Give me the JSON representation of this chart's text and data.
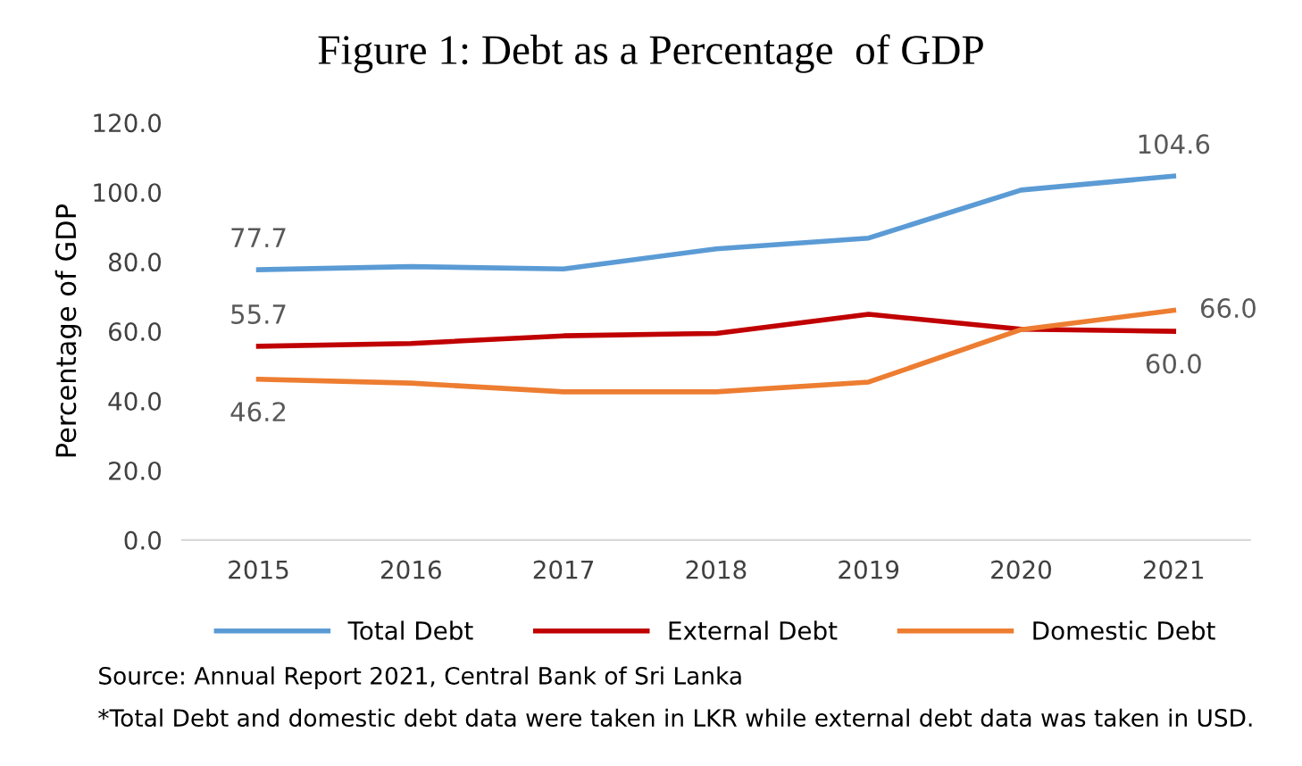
{
  "chart_data": {
    "type": "line",
    "title": "Figure 1: Debt as a Percentage  of GDP",
    "ylabel": "Percentage of GDP",
    "categories": [
      "2015",
      "2016",
      "2017",
      "2018",
      "2019",
      "2020",
      "2021"
    ],
    "series": [
      {
        "name": "Total Debt",
        "color": "#5b9bd5",
        "values": [
          77.7,
          78.6,
          77.9,
          83.7,
          86.8,
          100.6,
          104.6
        ],
        "value_labels": [
          "77.7",
          null,
          null,
          null,
          null,
          null,
          "104.6"
        ]
      },
      {
        "name": "External Debt",
        "color": "#c00000",
        "values": [
          55.7,
          56.5,
          58.7,
          59.4,
          64.9,
          60.6,
          60.0
        ],
        "value_labels": [
          "55.7",
          null,
          null,
          null,
          null,
          null,
          "60.0"
        ]
      },
      {
        "name": "Domestic Debt",
        "color": "#ed7d31",
        "values": [
          46.2,
          45.1,
          42.6,
          42.6,
          45.4,
          60.5,
          66.0
        ],
        "value_labels": [
          "46.2",
          null,
          null,
          null,
          null,
          null,
          "66.0"
        ]
      }
    ],
    "ylim": [
      0,
      120
    ],
    "yticks": [
      {
        "value": 0,
        "label": "0.0"
      },
      {
        "value": 20,
        "label": "20.0"
      },
      {
        "value": 40,
        "label": "40.0"
      },
      {
        "value": 60,
        "label": "60.0"
      },
      {
        "value": 80,
        "label": "80.0"
      },
      {
        "value": 100,
        "label": "100.0"
      },
      {
        "value": 120,
        "label": "120.0"
      }
    ],
    "legend": "bottom",
    "marker": "none",
    "line_style": "solid",
    "annotations": [
      "Source: Annual Report 2021, Central Bank of Sri Lanka",
      "*Total Debt and domestic debt data were taken in LKR while external debt data was taken in USD."
    ]
  }
}
